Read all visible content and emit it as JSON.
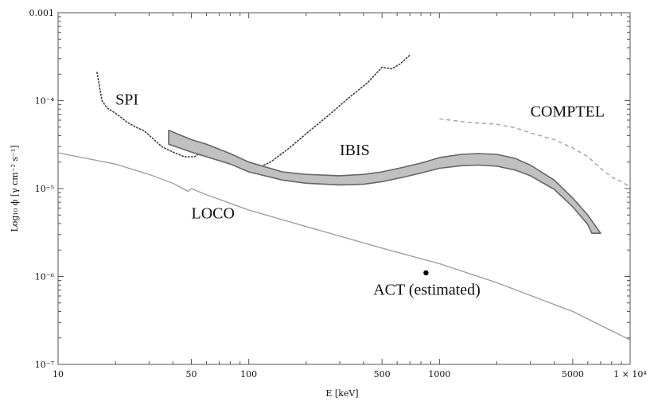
{
  "chart_data": {
    "type": "line",
    "xlabel": "E [keV]",
    "ylabel": "Log₁₀ ϕ [γ cm⁻² s⁻¹]",
    "x_scale": "log",
    "y_scale": "log",
    "xlim": [
      10,
      10000
    ],
    "ylim": [
      1e-07,
      0.001
    ],
    "grid": false,
    "x_ticks": [
      {
        "value": 10,
        "label": "10"
      },
      {
        "value": 50,
        "label": "50"
      },
      {
        "value": 100,
        "label": "100"
      },
      {
        "value": 500,
        "label": "500"
      },
      {
        "value": 1000,
        "label": "1000"
      },
      {
        "value": 5000,
        "label": "5000"
      },
      {
        "value": 10000,
        "label": "1 × 10⁴"
      }
    ],
    "y_ticks": [
      {
        "value": 1e-07,
        "label": "10⁻⁷"
      },
      {
        "value": 1e-06,
        "label": "10⁻⁶"
      },
      {
        "value": 1e-05,
        "label": "10⁻⁵"
      },
      {
        "value": 0.0001,
        "label": "10⁻⁴"
      },
      {
        "value": 0.001,
        "label": "0.001"
      }
    ],
    "series": [
      {
        "name": "SPI",
        "style": "dotted",
        "color": "#333333",
        "points": [
          [
            16,
            0.00021
          ],
          [
            17,
            0.0001
          ],
          [
            18,
            8.3e-05
          ],
          [
            20,
            7.2e-05
          ],
          [
            23,
            5.7e-05
          ],
          [
            26,
            4.9e-05
          ],
          [
            28,
            4.6e-05
          ],
          [
            31,
            3.8e-05
          ],
          [
            35,
            3e-05
          ],
          [
            40,
            2.6e-05
          ],
          [
            46,
            2.3e-05
          ],
          [
            52,
            2.3e-05
          ],
          [
            55,
            2.5e-05
          ],
          [
            58,
            2.9e-05
          ],
          [
            62,
            2.4e-05
          ],
          [
            68,
            2.1e-05
          ],
          [
            75,
            2.3e-05
          ],
          [
            82,
            2e-05
          ],
          [
            88,
            2.2e-05
          ],
          [
            96,
            1.8e-05
          ],
          [
            110,
            1.7e-05
          ],
          [
            130,
            2e-05
          ],
          [
            160,
            2.8e-05
          ],
          [
            200,
            4.2e-05
          ],
          [
            260,
            6.7e-05
          ],
          [
            330,
            0.000105
          ],
          [
            420,
            0.00016
          ],
          [
            500,
            0.00024
          ],
          [
            560,
            0.00023
          ],
          [
            620,
            0.00026
          ],
          [
            700,
            0.00033
          ]
        ]
      },
      {
        "name": "IBIS",
        "style": "band",
        "color": "#c0c0c0",
        "upper": [
          [
            38,
            4.6e-05
          ],
          [
            50,
            3.6e-05
          ],
          [
            60,
            3.2e-05
          ],
          [
            80,
            2.5e-05
          ],
          [
            100,
            2e-05
          ],
          [
            150,
            1.55e-05
          ],
          [
            200,
            1.45e-05
          ],
          [
            300,
            1.4e-05
          ],
          [
            400,
            1.45e-05
          ],
          [
            500,
            1.55e-05
          ],
          [
            650,
            1.75e-05
          ],
          [
            800,
            1.95e-05
          ],
          [
            1000,
            2.25e-05
          ],
          [
            1300,
            2.45e-05
          ],
          [
            1600,
            2.5e-05
          ],
          [
            2000,
            2.45e-05
          ],
          [
            2500,
            2.2e-05
          ],
          [
            3000,
            1.85e-05
          ],
          [
            4000,
            1.25e-05
          ],
          [
            5000,
            7.8e-06
          ],
          [
            6000,
            5e-06
          ],
          [
            7000,
            3.1e-06
          ]
        ],
        "lower": [
          [
            38,
            3.2e-05
          ],
          [
            50,
            2.6e-05
          ],
          [
            60,
            2.3e-05
          ],
          [
            80,
            1.9e-05
          ],
          [
            100,
            1.55e-05
          ],
          [
            150,
            1.25e-05
          ],
          [
            200,
            1.15e-05
          ],
          [
            300,
            1.1e-05
          ],
          [
            400,
            1.12e-05
          ],
          [
            500,
            1.2e-05
          ],
          [
            650,
            1.35e-05
          ],
          [
            800,
            1.5e-05
          ],
          [
            1000,
            1.7e-05
          ],
          [
            1300,
            1.82e-05
          ],
          [
            1600,
            1.85e-05
          ],
          [
            2000,
            1.8e-05
          ],
          [
            2500,
            1.62e-05
          ],
          [
            3000,
            1.4e-05
          ],
          [
            4000,
            9.8e-06
          ],
          [
            5000,
            6.2e-06
          ],
          [
            6000,
            3.9e-06
          ],
          [
            6300,
            3.1e-06
          ]
        ]
      },
      {
        "name": "COMPTEL",
        "style": "dashed",
        "color": "#9a9a9a",
        "points": [
          [
            1000,
            6.2e-05
          ],
          [
            1500,
            5.6e-05
          ],
          [
            2000,
            5.4e-05
          ],
          [
            2500,
            4.9e-05
          ],
          [
            3000,
            4.3e-05
          ],
          [
            4000,
            3.6e-05
          ],
          [
            5000,
            2.9e-05
          ],
          [
            6000,
            2.3e-05
          ],
          [
            7000,
            1.7e-05
          ],
          [
            8000,
            1.35e-05
          ],
          [
            9000,
            1.2e-05
          ],
          [
            10000,
            1.05e-05
          ]
        ]
      },
      {
        "name": "LOCO",
        "style": "solid",
        "color": "#9a9a9a",
        "points": [
          [
            10,
            2.55e-05
          ],
          [
            20,
            1.9e-05
          ],
          [
            30,
            1.45e-05
          ],
          [
            40,
            1.15e-05
          ],
          [
            48,
            9.3e-06
          ],
          [
            50,
            1e-05
          ],
          [
            60,
            8.5e-06
          ],
          [
            80,
            6.8e-06
          ],
          [
            100,
            5.7e-06
          ],
          [
            200,
            3.7e-06
          ],
          [
            500,
            2.1e-06
          ],
          [
            1000,
            1.4e-06
          ],
          [
            2000,
            8.5e-07
          ],
          [
            5000,
            4e-07
          ],
          [
            10000,
            1.9e-07
          ]
        ]
      },
      {
        "name": "ACT (estimated)",
        "style": "point",
        "color": "#000000",
        "points": [
          [
            850,
            1.1e-06
          ]
        ]
      }
    ],
    "annotations": [
      {
        "text": "SPI",
        "x": 20,
        "y": 9e-05
      },
      {
        "text": "COMPTEL",
        "x": 3000,
        "y": 6.6e-05
      },
      {
        "text": "IBIS",
        "x": 300,
        "y": 2.4e-05
      },
      {
        "text": "LOCO",
        "x": 50,
        "y": 4.6e-06
      },
      {
        "text": "ACT (estimated)",
        "x": 450,
        "y": 6.2e-07
      }
    ]
  }
}
